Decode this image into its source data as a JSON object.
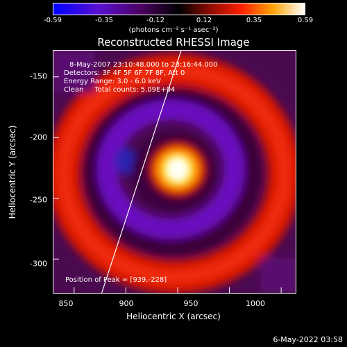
{
  "colorbar": {
    "ticks": [
      "-0.59",
      "-0.35",
      "-0.12",
      "0.12",
      "0.35",
      "0.59"
    ],
    "units": "(photons cm⁻² s⁻¹ asec⁻²)"
  },
  "title": "Reconstructed RHESSI Image",
  "info": {
    "time_range": "8-May-2007 23:10:48.000 to 23:16:44.000",
    "detectors": "Detectors: 3F 4F 5F 6F 7F 8F, Att 0",
    "energy": "Energy Range: 3.0 - 6.0 keV",
    "clean": "Clean     Total counts: 5.09E+04",
    "peak": "Position of Peak = [939,-228]"
  },
  "axes": {
    "xlabel": "Heliocentric X (arcsec)",
    "ylabel": "Heliocentric Y (arcsec)",
    "xticks": [
      "850",
      "900",
      "950",
      "1000"
    ],
    "yticks": [
      "-150",
      "-200",
      "-250",
      "-300"
    ]
  },
  "footer_date": "6-May-2022 03:58",
  "colors": {
    "colormap": [
      "#0000ff",
      "#6a00c8",
      "#3a003a",
      "#000000",
      "#7a0a00",
      "#ff2000",
      "#ffa000",
      "#ffff80",
      "#ffffff"
    ]
  }
}
